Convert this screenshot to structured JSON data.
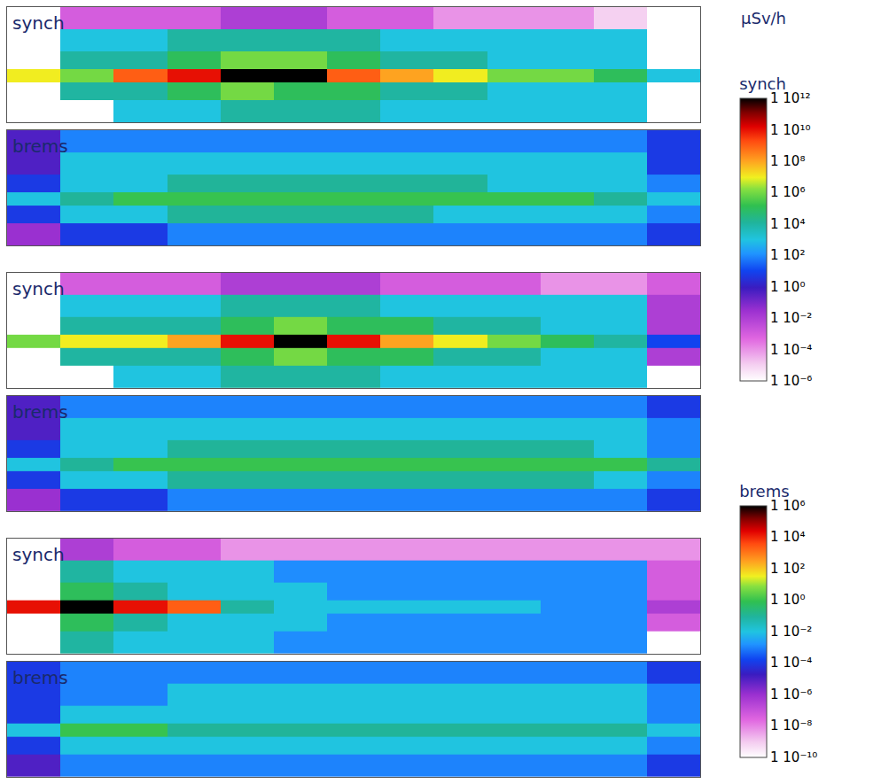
{
  "unit": "μSv/h",
  "color_bars": [
    {
      "title": "synch",
      "log": true,
      "range": [
        1e-06,
        1000000000000.0
      ],
      "ticks": [
        {
          "value": 1000000000000.0,
          "label": "1 10¹²"
        },
        {
          "value": 10000000000.0,
          "label": "1 10¹⁰"
        },
        {
          "value": 100000000.0,
          "label": "1 10⁸"
        },
        {
          "value": 1000000.0,
          "label": "1 10⁶"
        },
        {
          "value": 10000.0,
          "label": "1 10⁴"
        },
        {
          "value": 100.0,
          "label": "1 10²"
        },
        {
          "value": 1,
          "label": "1 10⁰"
        },
        {
          "value": 0.01,
          "label": "1 10⁻²"
        },
        {
          "value": 0.0001,
          "label": "1 10⁻⁴"
        },
        {
          "value": 1e-06,
          "label": "1 10⁻⁶"
        }
      ]
    },
    {
      "title": "brems",
      "log": true,
      "range": [
        1e-10,
        1000000.0
      ],
      "ticks": [
        {
          "value": 1000000.0,
          "label": "1 10⁶"
        },
        {
          "value": 10000.0,
          "label": "1 10⁴"
        },
        {
          "value": 100.0,
          "label": "1 10²"
        },
        {
          "value": 1,
          "label": "1 10⁰"
        },
        {
          "value": 0.01,
          "label": "1 10⁻²"
        },
        {
          "value": 0.0001,
          "label": "1 10⁻⁴"
        },
        {
          "value": 1e-06,
          "label": "1 10⁻⁶"
        },
        {
          "value": 1e-08,
          "label": "1 10⁻⁸"
        },
        {
          "value": 1e-10,
          "label": "1 10⁻¹⁰"
        }
      ]
    }
  ],
  "chart_data": [
    {
      "type": "heatmap",
      "title": "synch",
      "color_bar": "synch",
      "tick_labels": false,
      "xlim": [
        -1500,
        11500
      ],
      "ylim": [
        -1050,
        1550
      ],
      "x": [
        -1000,
        0,
        1000,
        2000,
        3000,
        4000,
        5000,
        6000,
        7000,
        8000,
        9000,
        10000,
        11000
      ],
      "y": [
        -800,
        -300,
        0,
        300,
        800,
        1300
      ],
      "cells": [
        [
          null,
          null,
          1000.0,
          1000.0,
          10000.0,
          10000.0,
          10000.0,
          1000.0,
          1000.0,
          1000.0,
          1000.0,
          1000.0,
          null
        ],
        [
          null,
          10000.0,
          10000.0,
          100000.0,
          1000000.0,
          100000.0,
          100000.0,
          10000.0,
          10000.0,
          1000.0,
          1000.0,
          1000.0,
          null
        ],
        [
          10000000.0,
          1000000.0,
          1000000000.0,
          10000000000.0,
          1000000000000.0,
          1000000000000.0,
          1000000000.0,
          100000000.0,
          10000000.0,
          1000000.0,
          1000000.0,
          100000.0,
          1000.0
        ],
        [
          null,
          10000.0,
          10000.0,
          100000.0,
          1000000.0,
          1000000.0,
          100000.0,
          10000.0,
          10000.0,
          1000.0,
          1000.0,
          1000.0,
          null
        ],
        [
          null,
          1000.0,
          1000.0,
          10000.0,
          10000.0,
          10000.0,
          10000.0,
          1000.0,
          1000.0,
          1000.0,
          1000.0,
          1000.0,
          null
        ],
        [
          null,
          0.001,
          0.001,
          0.001,
          0.01,
          0.01,
          0.001,
          0.001,
          0.0001,
          0.0001,
          0.0001,
          1e-05,
          null
        ]
      ]
    },
    {
      "type": "heatmap",
      "title": "brems",
      "color_bar": "brems",
      "tick_labels": false,
      "xlim": [
        -1500,
        11500
      ],
      "ylim": [
        -1050,
        1550
      ],
      "x": [
        -1000,
        0,
        1000,
        2000,
        3000,
        4000,
        5000,
        6000,
        7000,
        8000,
        9000,
        10000,
        11000
      ],
      "y": [
        -800,
        -300,
        0,
        300,
        800,
        1300
      ],
      "cells": [
        [
          1e-06,
          0.0001,
          0.0001,
          0.001,
          0.001,
          0.001,
          0.001,
          0.001,
          0.001,
          0.001,
          0.001,
          0.001,
          0.0001
        ],
        [
          0.0001,
          0.01,
          0.01,
          0.1,
          0.1,
          0.1,
          0.1,
          0.1,
          0.01,
          0.01,
          0.01,
          0.01,
          0.001
        ],
        [
          0.01,
          0.1,
          1,
          1,
          1,
          1,
          1,
          1,
          1,
          1,
          1,
          0.1,
          0.01
        ],
        [
          0.0001,
          0.01,
          0.01,
          0.1,
          0.1,
          0.1,
          0.1,
          0.1,
          0.1,
          0.01,
          0.01,
          0.01,
          0.001
        ],
        [
          1e-05,
          0.01,
          0.01,
          0.01,
          0.01,
          0.01,
          0.01,
          0.01,
          0.01,
          0.01,
          0.01,
          0.01,
          0.0001
        ],
        [
          1e-05,
          0.001,
          0.001,
          0.001,
          0.001,
          0.001,
          0.001,
          0.001,
          0.001,
          0.001,
          0.001,
          0.001,
          0.0001
        ]
      ]
    },
    {
      "type": "heatmap",
      "title": "synch",
      "color_bar": "synch",
      "tick_labels": false,
      "xlim": [
        -1500,
        11500
      ],
      "ylim": [
        -1050,
        1550
      ],
      "x": [
        -1000,
        0,
        1000,
        2000,
        3000,
        4000,
        5000,
        6000,
        7000,
        8000,
        9000,
        10000,
        11000
      ],
      "y": [
        -800,
        -300,
        0,
        300,
        800,
        1300
      ],
      "cells": [
        [
          null,
          null,
          1000.0,
          1000.0,
          10000.0,
          10000.0,
          10000.0,
          1000.0,
          1000.0,
          1000.0,
          1000.0,
          1000.0,
          null
        ],
        [
          null,
          10000.0,
          10000.0,
          10000.0,
          100000.0,
          1000000.0,
          100000.0,
          100000.0,
          10000.0,
          10000.0,
          1000.0,
          1000.0,
          0.01
        ],
        [
          1000000.0,
          10000000.0,
          10000000.0,
          100000000.0,
          10000000000.0,
          1000000000000.0,
          10000000000.0,
          100000000.0,
          10000000.0,
          1000000.0,
          100000.0,
          10000.0,
          10.0
        ],
        [
          null,
          10000.0,
          10000.0,
          10000.0,
          100000.0,
          1000000.0,
          100000.0,
          100000.0,
          10000.0,
          10000.0,
          1000.0,
          1000.0,
          0.01
        ],
        [
          null,
          1000.0,
          1000.0,
          1000.0,
          10000.0,
          10000.0,
          10000.0,
          1000.0,
          1000.0,
          1000.0,
          1000.0,
          1000.0,
          0.01
        ],
        [
          null,
          0.001,
          0.001,
          0.001,
          0.01,
          0.01,
          0.01,
          0.001,
          0.001,
          0.001,
          0.0001,
          0.0001,
          0.001
        ]
      ]
    },
    {
      "type": "heatmap",
      "title": "brems",
      "color_bar": "brems",
      "tick_labels": false,
      "xlim": [
        -1500,
        11500
      ],
      "ylim": [
        -1050,
        1550
      ],
      "x": [
        -1000,
        0,
        1000,
        2000,
        3000,
        4000,
        5000,
        6000,
        7000,
        8000,
        9000,
        10000,
        11000
      ],
      "y": [
        -800,
        -300,
        0,
        300,
        800,
        1300
      ],
      "cells": [
        [
          1e-06,
          0.0001,
          0.0001,
          0.001,
          0.001,
          0.001,
          0.001,
          0.001,
          0.001,
          0.001,
          0.001,
          0.001,
          0.0001
        ],
        [
          0.0001,
          0.01,
          0.01,
          0.1,
          0.1,
          0.1,
          0.1,
          0.1,
          0.1,
          0.1,
          0.1,
          0.01,
          0.001
        ],
        [
          0.01,
          0.1,
          1,
          1,
          1,
          1,
          1,
          1,
          1,
          1,
          1,
          1,
          0.1
        ],
        [
          0.0001,
          0.01,
          0.01,
          0.1,
          0.1,
          0.1,
          0.1,
          0.1,
          0.1,
          0.1,
          0.1,
          0.01,
          0.001
        ],
        [
          1e-05,
          0.01,
          0.01,
          0.01,
          0.01,
          0.01,
          0.01,
          0.01,
          0.01,
          0.01,
          0.01,
          0.01,
          0.001
        ],
        [
          1e-05,
          0.001,
          0.001,
          0.001,
          0.001,
          0.001,
          0.001,
          0.001,
          0.001,
          0.001,
          0.001,
          0.001,
          0.0001
        ]
      ]
    },
    {
      "type": "heatmap",
      "title": "synch",
      "color_bar": "synch",
      "tick_labels": false,
      "xlim": [
        -1500,
        11500
      ],
      "ylim": [
        -1050,
        1550
      ],
      "x": [
        -1000,
        0,
        1000,
        2000,
        3000,
        4000,
        5000,
        6000,
        7000,
        8000,
        9000,
        10000,
        11000
      ],
      "y": [
        -800,
        -300,
        0,
        300,
        800,
        1300
      ],
      "cells": [
        [
          null,
          10000.0,
          1000.0,
          1000.0,
          1000.0,
          100.0,
          100.0,
          100.0,
          100.0,
          100.0,
          100.0,
          100.0,
          null
        ],
        [
          null,
          100000.0,
          10000.0,
          1000.0,
          1000.0,
          1000.0,
          100.0,
          100.0,
          100.0,
          100.0,
          100.0,
          100.0,
          0.001
        ],
        [
          10000000000.0,
          1000000000000.0,
          10000000000.0,
          1000000000.0,
          10000.0,
          1000.0,
          1000.0,
          1000.0,
          1000.0,
          1000.0,
          100.0,
          100.0,
          0.01
        ],
        [
          null,
          100000.0,
          10000.0,
          1000.0,
          1000.0,
          1000.0,
          100.0,
          100.0,
          100.0,
          100.0,
          100.0,
          100.0,
          0.001
        ],
        [
          null,
          10000.0,
          1000.0,
          1000.0,
          1000.0,
          100.0,
          100.0,
          100.0,
          100.0,
          100.0,
          100.0,
          100.0,
          0.001
        ],
        [
          null,
          0.01,
          0.001,
          0.001,
          0.0001,
          0.0001,
          0.0001,
          0.0001,
          0.0001,
          0.0001,
          0.0001,
          0.0001,
          0.0001
        ]
      ]
    },
    {
      "type": "heatmap",
      "title": "brems",
      "color_bar": "brems",
      "tick_labels": false,
      "xlim": [
        -1500,
        11500
      ],
      "ylim": [
        -1050,
        1550
      ],
      "x": [
        -1000,
        0,
        1000,
        2000,
        3000,
        4000,
        5000,
        6000,
        7000,
        8000,
        9000,
        10000,
        11000
      ],
      "y": [
        -800,
        -300,
        0,
        300,
        800,
        1300
      ],
      "cells": [
        [
          1e-05,
          0.001,
          0.001,
          0.001,
          0.001,
          0.001,
          0.001,
          0.001,
          0.001,
          0.001,
          0.001,
          0.001,
          0.0001
        ],
        [
          0.0001,
          0.01,
          0.01,
          0.01,
          0.01,
          0.01,
          0.01,
          0.01,
          0.01,
          0.01,
          0.01,
          0.01,
          0.001
        ],
        [
          0.01,
          1,
          1,
          0.1,
          0.1,
          0.1,
          0.1,
          0.1,
          0.1,
          0.1,
          0.1,
          0.1,
          0.01
        ],
        [
          0.0001,
          0.01,
          0.01,
          0.01,
          0.01,
          0.01,
          0.01,
          0.01,
          0.01,
          0.01,
          0.01,
          0.01,
          0.001
        ],
        [
          0.0001,
          0.001,
          0.001,
          0.01,
          0.01,
          0.01,
          0.01,
          0.01,
          0.01,
          0.01,
          0.01,
          0.01,
          0.001
        ],
        [
          0.0001,
          0.001,
          0.001,
          0.001,
          0.001,
          0.001,
          0.001,
          0.001,
          0.001,
          0.001,
          0.001,
          0.001,
          0.0001
        ]
      ]
    }
  ]
}
